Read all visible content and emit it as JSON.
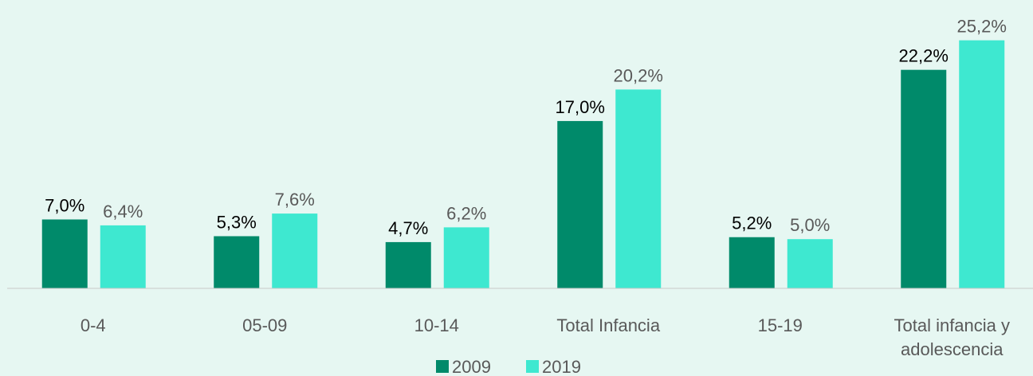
{
  "chart_data": {
    "type": "bar",
    "categories": [
      "0-4",
      "05-09",
      "10-14",
      "Total Infancia",
      "15-19",
      "Total infancia y adolescencia"
    ],
    "series": [
      {
        "name": "2009",
        "color": "#008a6a",
        "values": [
          7.0,
          5.3,
          4.7,
          17.0,
          5.2,
          22.2
        ],
        "value_labels": [
          "7,0%",
          "5,3%",
          "4,7%",
          "17,0%",
          "5,2%",
          "22,2%"
        ]
      },
      {
        "name": "2019",
        "color": "#3ee8d0",
        "values": [
          6.4,
          7.6,
          6.2,
          20.2,
          5.0,
          25.2
        ],
        "value_labels": [
          "6,4%",
          "7,6%",
          "6,2%",
          "20,2%",
          "5,0%",
          "25,2%"
        ]
      }
    ],
    "ylim": [
      0,
      28
    ],
    "legend": "bottom"
  }
}
